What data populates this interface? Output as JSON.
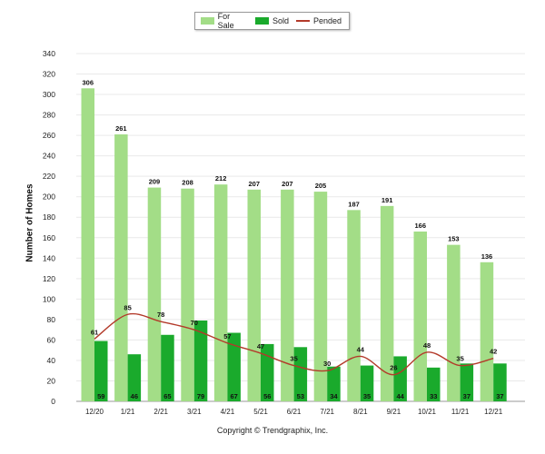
{
  "chart_data": {
    "type": "bar",
    "ylabel": "Number of Homes",
    "ylim": [
      0,
      340
    ],
    "yticks": [
      0,
      20,
      40,
      60,
      80,
      100,
      120,
      140,
      160,
      180,
      200,
      220,
      240,
      260,
      280,
      300,
      320,
      340
    ],
    "grid": true,
    "legend_position": "top-center",
    "categories": [
      "12/20",
      "1/21",
      "2/21",
      "3/21",
      "4/21",
      "5/21",
      "6/21",
      "7/21",
      "8/21",
      "9/21",
      "10/21",
      "11/21",
      "12/21"
    ],
    "series": [
      {
        "name": "For Sale",
        "kind": "bar",
        "color": "#a3dd87",
        "values": [
          306,
          261,
          209,
          208,
          212,
          207,
          207,
          205,
          187,
          191,
          166,
          153,
          136
        ]
      },
      {
        "name": "Sold",
        "kind": "bar",
        "color": "#1aaa2c",
        "values": [
          59,
          46,
          65,
          79,
          67,
          56,
          53,
          34,
          35,
          44,
          33,
          37,
          37
        ]
      },
      {
        "name": "Pended",
        "kind": "line",
        "color": "#b33a2a",
        "values": [
          61,
          85,
          78,
          70,
          57,
          47,
          35,
          30,
          44,
          26,
          48,
          35,
          42
        ]
      }
    ]
  },
  "footer": {
    "copyright": "Copyright © Trendgraphix, Inc."
  }
}
